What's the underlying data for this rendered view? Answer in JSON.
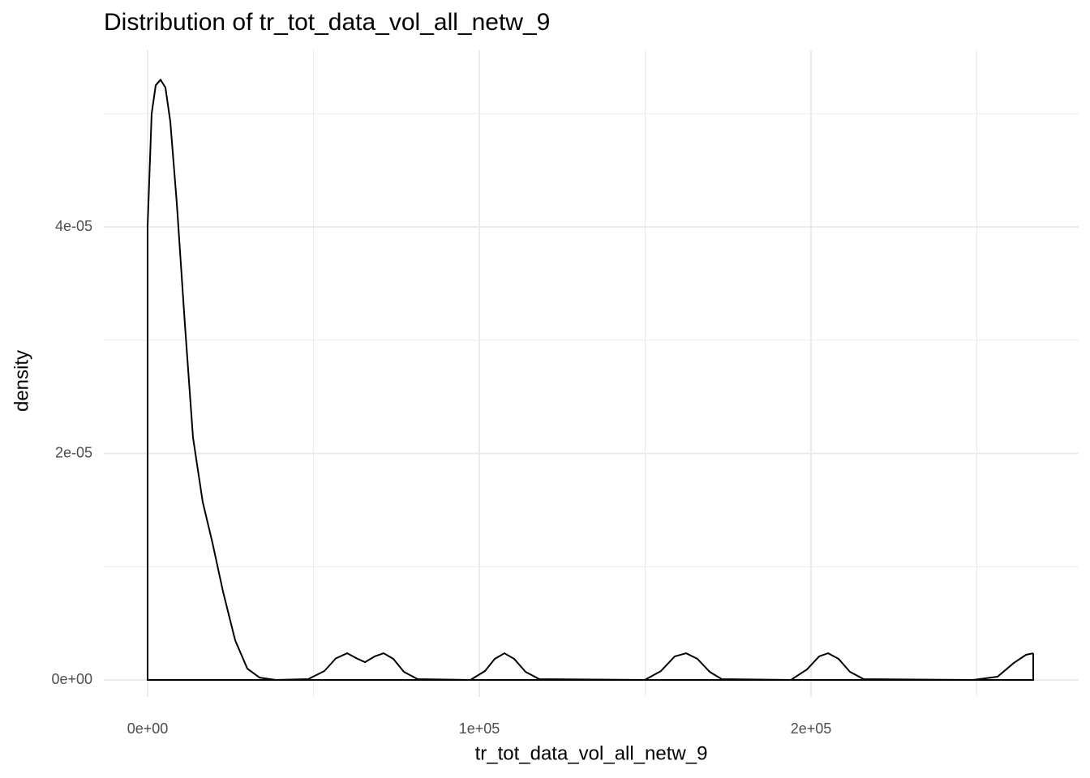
{
  "chart_data": {
    "type": "density",
    "title": "Distribution of tr_tot_data_vol_all_netw_9",
    "x_label": "tr_tot_data_vol_all_netw_9",
    "y_label": "density",
    "color": "#000000",
    "grid": true,
    "xlim": [
      -13200,
      280680
    ],
    "ylim": [
      -1.5e-06,
      5.56e-05
    ],
    "xticks": [
      {
        "value": 0,
        "label": "0e+00"
      },
      {
        "value": 100000,
        "label": "1e+05"
      },
      {
        "value": 200000,
        "label": "2e+05"
      }
    ],
    "yticks": [
      {
        "value": 0,
        "label": "0e+00"
      },
      {
        "value": 2e-05,
        "label": "2e-05"
      },
      {
        "value": 4e-05,
        "label": "4e-05"
      }
    ],
    "x_minor_ticks": [
      50000,
      150000,
      250000
    ],
    "y_minor_ticks": [
      1e-05,
      3e-05,
      5e-05
    ],
    "x": [
      0,
      1222,
      2445,
      3912,
      5379,
      6846,
      8802,
      11247,
      13692,
      16626,
      19560,
      22738,
      26406,
      30073,
      33741,
      38631,
      48411,
      53301,
      56724,
      60147,
      63081,
      65526,
      68460,
      71149,
      74083,
      77262,
      81418,
      97311,
      101711,
      104645,
      107579,
      110513,
      113936,
      118093,
      149878,
      154768,
      158924,
      162347,
      165770,
      169438,
      173105,
      193888,
      198778,
      202445,
      205134,
      208313,
      211736,
      215892,
      248900,
      256235,
      261125,
      264792,
      266993
    ],
    "values": [
      4e-05,
      5e-05,
      5.25e-05,
      5.3e-05,
      5.23e-05,
      4.93e-05,
      4.21e-05,
      3.14e-05,
      2.14e-05,
      1.57e-05,
      1.21e-05,
      7.8e-06,
      3.5e-06,
      1e-06,
      2.1e-07,
      0,
      7e-08,
      7.9e-07,
      1.9e-06,
      2.36e-06,
      1.9e-06,
      1.57e-06,
      2.08e-06,
      2.36e-06,
      1.86e-06,
      7.2e-07,
      7e-08,
      0,
      7.9e-07,
      1.86e-06,
      2.36e-06,
      1.86e-06,
      7.2e-07,
      7e-08,
      0,
      7.9e-07,
      2.08e-06,
      2.36e-06,
      1.86e-06,
      7.2e-07,
      7e-08,
      0,
      9.3e-07,
      2.08e-06,
      2.36e-06,
      1.86e-06,
      7.2e-07,
      7e-08,
      0,
      2.9e-07,
      1.5e-06,
      2.22e-06,
      2.36e-06
    ]
  }
}
